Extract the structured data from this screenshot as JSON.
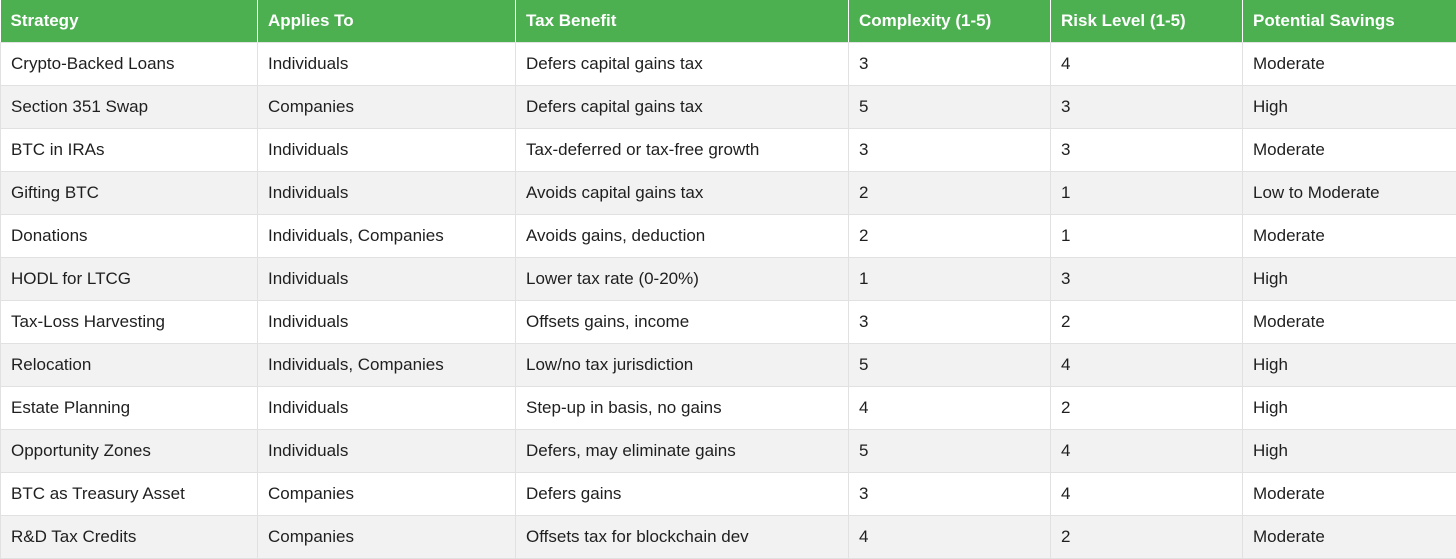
{
  "table": {
    "headers": [
      "Strategy",
      "Applies To",
      "Tax Benefit",
      "Complexity (1-5)",
      "Risk Level (1-5)",
      "Potential Savings"
    ],
    "rows": [
      [
        "Crypto-Backed Loans",
        "Individuals",
        "Defers capital gains tax",
        "3",
        "4",
        "Moderate"
      ],
      [
        "Section 351 Swap",
        "Companies",
        "Defers capital gains tax",
        "5",
        "3",
        "High"
      ],
      [
        "BTC in IRAs",
        "Individuals",
        "Tax-deferred or tax-free growth",
        "3",
        "3",
        "Moderate"
      ],
      [
        "Gifting BTC",
        "Individuals",
        "Avoids capital gains tax",
        "2",
        "1",
        "Low to Moderate"
      ],
      [
        "Donations",
        "Individuals, Companies",
        "Avoids gains, deduction",
        "2",
        "1",
        "Moderate"
      ],
      [
        "HODL for LTCG",
        "Individuals",
        "Lower tax rate (0-20%)",
        "1",
        "3",
        "High"
      ],
      [
        "Tax-Loss Harvesting",
        "Individuals",
        "Offsets gains, income",
        "3",
        "2",
        "Moderate"
      ],
      [
        "Relocation",
        "Individuals, Companies",
        "Low/no tax jurisdiction",
        "5",
        "4",
        "High"
      ],
      [
        "Estate Planning",
        "Individuals",
        "Step-up in basis, no gains",
        "4",
        "2",
        "High"
      ],
      [
        "Opportunity Zones",
        "Individuals",
        "Defers, may eliminate gains",
        "5",
        "4",
        "High"
      ],
      [
        "BTC as Treasury Asset",
        "Companies",
        "Defers gains",
        "3",
        "4",
        "Moderate"
      ],
      [
        "R&D Tax Credits",
        "Companies",
        "Offsets tax for blockchain dev",
        "4",
        "2",
        "Moderate"
      ]
    ]
  },
  "colors": {
    "header_bg": "#4caf50",
    "header_text": "#ffffff",
    "row_alt_bg": "#f2f2f2",
    "grid_line": "#e1e1e1"
  }
}
